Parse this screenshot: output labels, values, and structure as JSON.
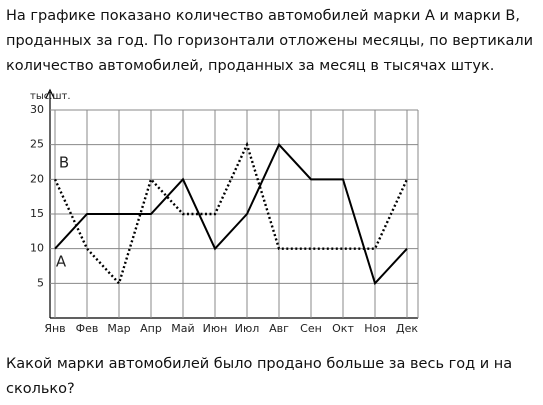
{
  "intro": "На графике показано количество автомобилей марки А и марки В, проданных за год. По горизонтали отложены месяцы, по вертикали количество автомобилей, проданных за месяц в тысячах штук.",
  "chart_data": {
    "type": "line",
    "y_label": "тыс.шт.",
    "categories": [
      "Янв",
      "Фев",
      "Мар",
      "Апр",
      "Май",
      "Июн",
      "Июл",
      "Авг",
      "Сен",
      "Окт",
      "Ноя",
      "Дек"
    ],
    "series": [
      {
        "name": "A",
        "color": "#000000",
        "style": "solid",
        "values": [
          10,
          15,
          15,
          15,
          20,
          10,
          15,
          25,
          20,
          20,
          5,
          10
        ]
      },
      {
        "name": "B",
        "color": "#000000",
        "style": "dotted",
        "values": [
          20,
          10,
          5,
          20,
          15,
          15,
          25,
          10,
          10,
          10,
          10,
          20
        ]
      }
    ],
    "ylim": [
      0,
      30
    ],
    "yticks": [
      5,
      10,
      15,
      20,
      25,
      30
    ],
    "grid": true
  },
  "question": "Какой марки автомобилей было продано больше за весь год и на сколько?"
}
